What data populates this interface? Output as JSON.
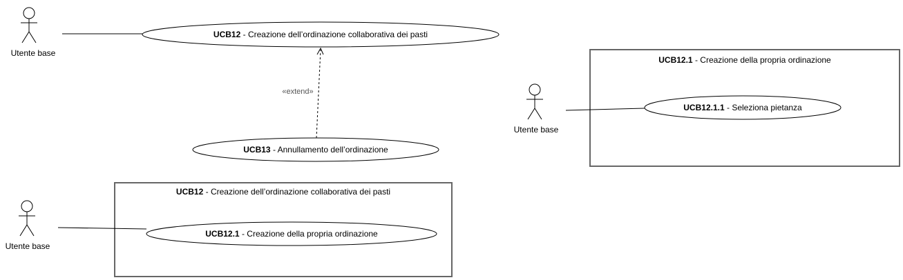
{
  "actors": [
    {
      "id": "actor-1",
      "label": "Utente base"
    },
    {
      "id": "actor-2",
      "label": "Utente base"
    },
    {
      "id": "actor-3",
      "label": "Utente base"
    }
  ],
  "use_cases": [
    {
      "id": "ucb12-top",
      "code": "UCB12",
      "text": "Creazione dell’ordinazione collaborativa dei pasti"
    },
    {
      "id": "ucb13",
      "code": "UCB13",
      "text": "Annullamento dell’ordinazione"
    },
    {
      "id": "ucb12-1-inner",
      "code": "UCB12.1",
      "text": "Creazione della propria ordinazione"
    },
    {
      "id": "ucb12-1-1",
      "code": "UCB12.1.1",
      "text": "Seleziona pietanza"
    }
  ],
  "boundaries": [
    {
      "id": "box-ucb12",
      "code": "UCB12",
      "text": "Creazione dell’ordinazione collaborativa dei pasti"
    },
    {
      "id": "box-ucb12-1",
      "code": "UCB12.1",
      "text": "Creazione della propria ordinazione"
    }
  ],
  "relations": {
    "extend_label": "«extend»"
  }
}
